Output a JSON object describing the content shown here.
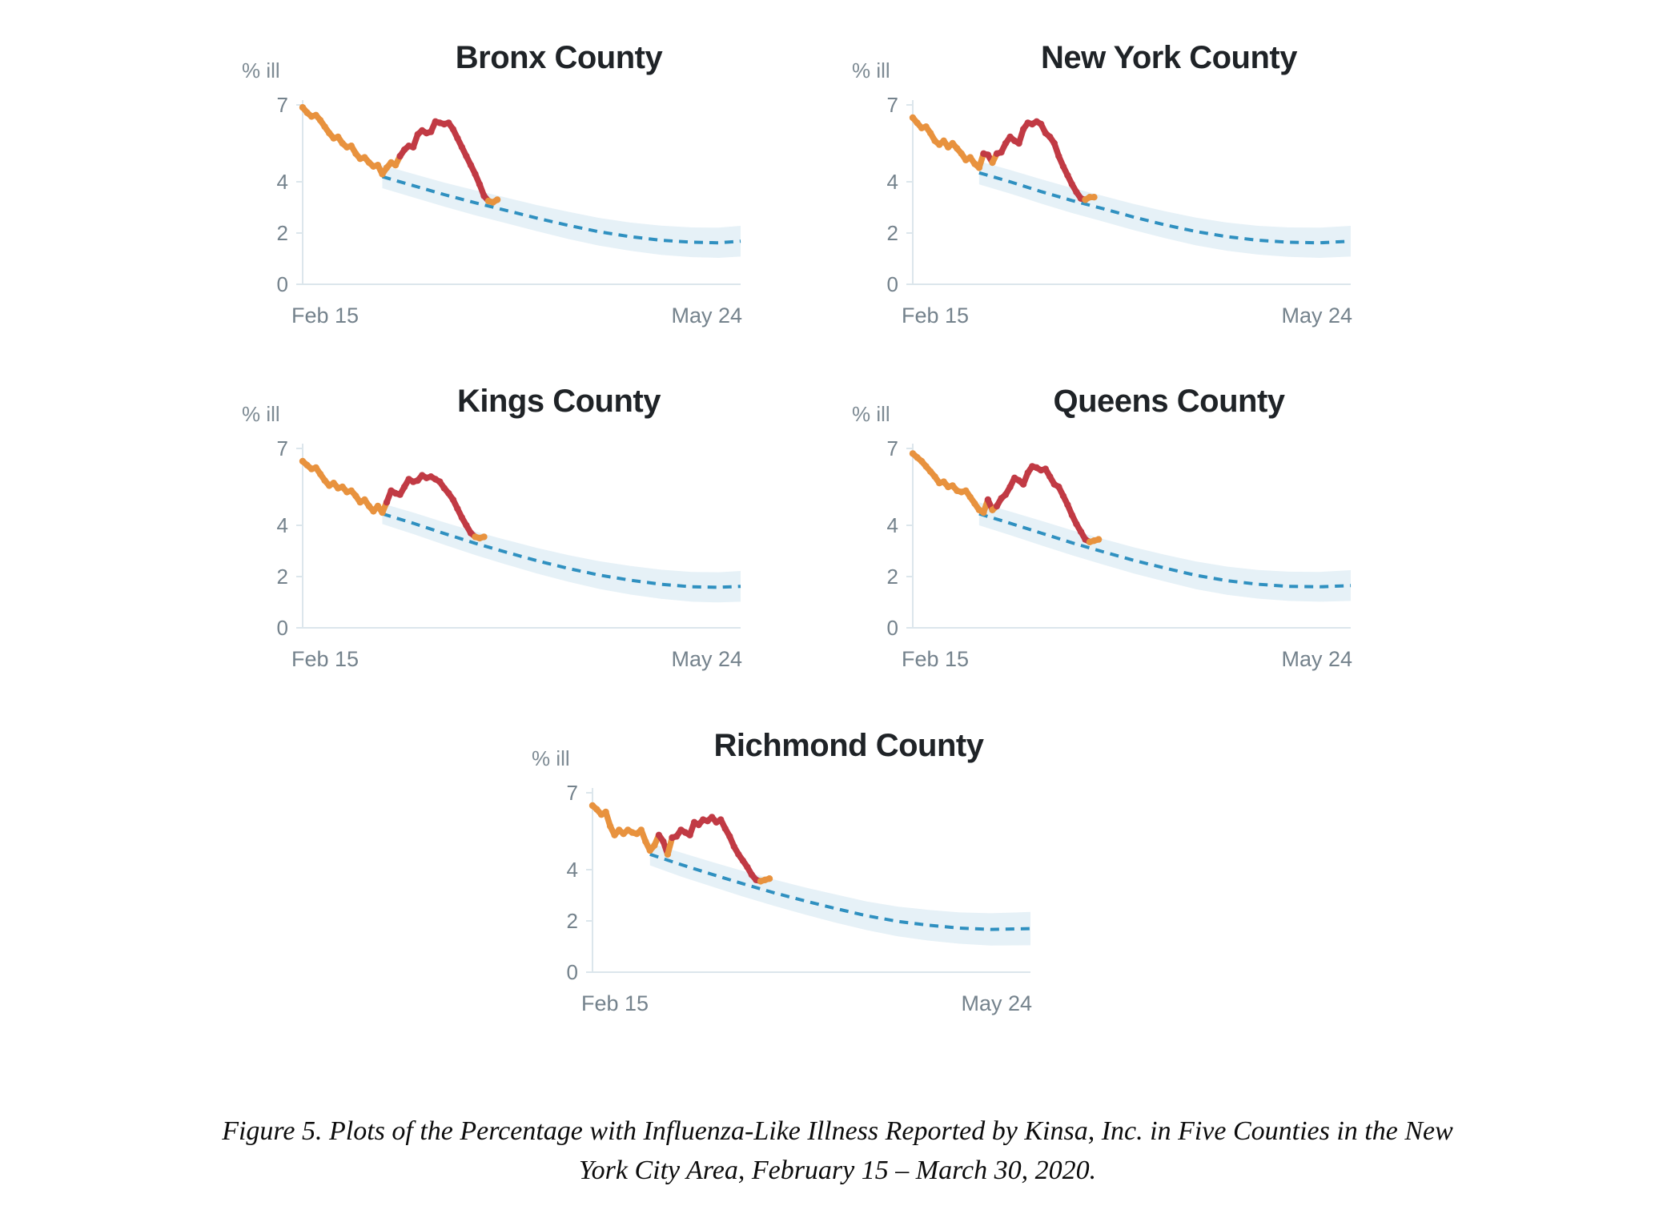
{
  "figure": {
    "caption_line1": "Figure 5. Plots of the Percentage with Influenza-Like Illness Reported by Kinsa, Inc. in Five Counties in the New",
    "caption_line2": "York City Area, February 15 – March 30, 2020."
  },
  "colors": {
    "observed": "#E8923E",
    "anomaly": "#C13A44",
    "forecast": "#2F90C0",
    "band": "#E6F1F7",
    "axis": "#DCE6EC",
    "tick_text": "#74828C",
    "title_text": "#1F2327"
  },
  "chart_data": [
    {
      "type": "line",
      "title": "Bronx County",
      "ylabel": "% ill",
      "y_ticks": [
        7,
        4,
        2,
        0
      ],
      "x_ticks": [
        "Feb 15",
        "May 24"
      ],
      "x_range_days": 99,
      "ylim": [
        0,
        7
      ],
      "observed": [
        6.9,
        6.7,
        6.55,
        6.6,
        6.4,
        6.15,
        5.9,
        5.7,
        5.75,
        5.5,
        5.35,
        5.4,
        5.1,
        4.9,
        4.95,
        4.75,
        4.6,
        4.65,
        4.3,
        4.55,
        4.75,
        4.65,
        5.0,
        5.25,
        5.4,
        5.35,
        5.85,
        6.0,
        5.9,
        5.95,
        6.35,
        6.3,
        6.25,
        6.3,
        6.05,
        5.7,
        5.35,
        5.0,
        4.65,
        4.3,
        3.9,
        3.45,
        3.25,
        3.2,
        3.3
      ],
      "anomaly_ranges": [
        [
          21.5,
          41.4
        ]
      ],
      "forecast": [
        [
          18,
          4.2
        ],
        [
          25,
          3.85
        ],
        [
          32,
          3.5
        ],
        [
          39,
          3.18
        ],
        [
          46,
          2.88
        ],
        [
          53,
          2.58
        ],
        [
          60,
          2.3
        ],
        [
          67,
          2.05
        ],
        [
          74,
          1.86
        ],
        [
          81,
          1.72
        ],
        [
          88,
          1.64
        ],
        [
          94,
          1.62
        ],
        [
          99,
          1.68
        ]
      ],
      "band": [
        [
          18,
          3.75,
          4.65
        ],
        [
          25,
          3.39,
          4.31
        ],
        [
          32,
          3.03,
          3.97
        ],
        [
          39,
          2.69,
          3.67
        ],
        [
          46,
          2.38,
          3.38
        ],
        [
          53,
          2.07,
          3.09
        ],
        [
          60,
          1.77,
          2.83
        ],
        [
          67,
          1.51,
          2.59
        ],
        [
          74,
          1.31,
          2.41
        ],
        [
          81,
          1.15,
          2.29
        ],
        [
          88,
          1.06,
          2.22
        ],
        [
          94,
          1.03,
          2.21
        ],
        [
          99,
          1.08,
          2.28
        ]
      ]
    },
    {
      "type": "line",
      "title": "New York County",
      "ylabel": "% ill",
      "y_ticks": [
        7,
        4,
        2,
        0
      ],
      "x_ticks": [
        "Feb 15",
        "May 24"
      ],
      "x_range_days": 99,
      "ylim": [
        0,
        7
      ],
      "observed": [
        6.5,
        6.3,
        6.1,
        6.15,
        5.9,
        5.6,
        5.45,
        5.6,
        5.35,
        5.5,
        5.3,
        5.1,
        4.85,
        4.95,
        4.7,
        4.55,
        5.1,
        5.05,
        4.75,
        5.1,
        5.15,
        5.5,
        5.75,
        5.6,
        5.5,
        6.05,
        6.3,
        6.25,
        6.35,
        6.25,
        5.9,
        5.75,
        5.5,
        5.0,
        4.6,
        4.25,
        3.9,
        3.6,
        3.35,
        3.3,
        3.4,
        3.4
      ],
      "anomaly_ranges": [
        [
          15.6,
          17.4
        ],
        [
          18.6,
          38.4
        ]
      ],
      "forecast": [
        [
          15,
          4.35
        ],
        [
          22,
          4.0
        ],
        [
          29,
          3.62
        ],
        [
          36,
          3.27
        ],
        [
          43,
          2.95
        ],
        [
          50,
          2.62
        ],
        [
          57,
          2.32
        ],
        [
          64,
          2.06
        ],
        [
          71,
          1.86
        ],
        [
          78,
          1.72
        ],
        [
          85,
          1.64
        ],
        [
          92,
          1.62
        ],
        [
          99,
          1.68
        ]
      ],
      "band": [
        [
          15,
          3.9,
          4.8
        ],
        [
          22,
          3.54,
          4.46
        ],
        [
          29,
          3.15,
          4.1
        ],
        [
          36,
          2.78,
          3.76
        ],
        [
          43,
          2.45,
          3.45
        ],
        [
          50,
          2.11,
          3.13
        ],
        [
          57,
          1.8,
          2.85
        ],
        [
          64,
          1.52,
          2.6
        ],
        [
          71,
          1.31,
          2.41
        ],
        [
          78,
          1.16,
          2.28
        ],
        [
          85,
          1.07,
          2.22
        ],
        [
          92,
          1.03,
          2.21
        ],
        [
          99,
          1.08,
          2.28
        ]
      ]
    },
    {
      "type": "line",
      "title": "Kings County",
      "ylabel": "% ill",
      "y_ticks": [
        7,
        4,
        2,
        0
      ],
      "x_ticks": [
        "Feb 15",
        "May 24"
      ],
      "x_range_days": 99,
      "ylim": [
        0,
        7
      ],
      "observed": [
        6.5,
        6.35,
        6.2,
        6.25,
        6.0,
        5.75,
        5.55,
        5.65,
        5.45,
        5.5,
        5.3,
        5.35,
        5.15,
        4.9,
        5.0,
        4.75,
        4.55,
        4.75,
        4.5,
        4.9,
        5.35,
        5.25,
        5.2,
        5.5,
        5.8,
        5.7,
        5.75,
        5.95,
        5.85,
        5.9,
        5.8,
        5.7,
        5.45,
        5.25,
        5.0,
        4.65,
        4.3,
        4.0,
        3.7,
        3.55,
        3.5,
        3.55
      ],
      "anomaly_ranges": [
        [
          18.6,
          38.4
        ]
      ],
      "forecast": [
        [
          18,
          4.45
        ],
        [
          25,
          4.08
        ],
        [
          32,
          3.68
        ],
        [
          39,
          3.3
        ],
        [
          46,
          2.95
        ],
        [
          53,
          2.62
        ],
        [
          60,
          2.32
        ],
        [
          67,
          2.06
        ],
        [
          74,
          1.86
        ],
        [
          81,
          1.7
        ],
        [
          88,
          1.6
        ],
        [
          94,
          1.58
        ],
        [
          99,
          1.62
        ]
      ],
      "band": [
        [
          18,
          4.05,
          4.85
        ],
        [
          25,
          3.66,
          4.5
        ],
        [
          32,
          3.24,
          4.12
        ],
        [
          39,
          2.84,
          3.76
        ],
        [
          46,
          2.47,
          3.43
        ],
        [
          53,
          2.12,
          3.12
        ],
        [
          60,
          1.8,
          2.84
        ],
        [
          67,
          1.52,
          2.6
        ],
        [
          74,
          1.3,
          2.42
        ],
        [
          81,
          1.13,
          2.27
        ],
        [
          88,
          1.02,
          2.18
        ],
        [
          94,
          0.99,
          2.17
        ],
        [
          99,
          1.02,
          2.22
        ]
      ]
    },
    {
      "type": "line",
      "title": "Queens County",
      "ylabel": "% ill",
      "y_ticks": [
        7,
        4,
        2,
        0
      ],
      "x_ticks": [
        "Feb 15",
        "May 24"
      ],
      "x_range_days": 99,
      "ylim": [
        0,
        7
      ],
      "observed": [
        6.8,
        6.65,
        6.5,
        6.3,
        6.1,
        5.9,
        5.65,
        5.7,
        5.5,
        5.55,
        5.35,
        5.3,
        5.35,
        5.1,
        4.85,
        4.6,
        4.5,
        5.0,
        4.6,
        4.75,
        5.05,
        5.2,
        5.5,
        5.85,
        5.75,
        5.6,
        6.05,
        6.3,
        6.25,
        6.15,
        6.2,
        5.9,
        5.6,
        5.5,
        5.15,
        4.8,
        4.4,
        4.05,
        3.75,
        3.45,
        3.35,
        3.4,
        3.45
      ],
      "anomaly_ranges": [
        [
          16.6,
          17.4
        ],
        [
          18.6,
          39.4
        ]
      ],
      "forecast": [
        [
          15,
          4.45
        ],
        [
          22,
          4.08
        ],
        [
          29,
          3.7
        ],
        [
          36,
          3.32
        ],
        [
          43,
          2.97
        ],
        [
          50,
          2.63
        ],
        [
          57,
          2.33
        ],
        [
          64,
          2.05
        ],
        [
          71,
          1.84
        ],
        [
          78,
          1.7
        ],
        [
          85,
          1.62
        ],
        [
          92,
          1.6
        ],
        [
          99,
          1.65
        ]
      ],
      "band": [
        [
          15,
          4.0,
          4.9
        ],
        [
          22,
          3.62,
          4.54
        ],
        [
          29,
          3.22,
          4.18
        ],
        [
          36,
          2.83,
          3.81
        ],
        [
          43,
          2.47,
          3.47
        ],
        [
          50,
          2.12,
          3.14
        ],
        [
          57,
          1.81,
          2.85
        ],
        [
          64,
          1.51,
          2.59
        ],
        [
          71,
          1.29,
          2.39
        ],
        [
          78,
          1.14,
          2.26
        ],
        [
          85,
          1.05,
          2.19
        ],
        [
          92,
          1.02,
          2.18
        ],
        [
          99,
          1.05,
          2.25
        ]
      ]
    },
    {
      "type": "line",
      "title": "Richmond County",
      "ylabel": "% ill",
      "y_ticks": [
        7,
        4,
        2,
        0
      ],
      "x_ticks": [
        "Feb 15",
        "May 24"
      ],
      "x_range_days": 99,
      "ylim": [
        0,
        7
      ],
      "observed": [
        6.5,
        6.35,
        6.15,
        6.25,
        5.7,
        5.35,
        5.55,
        5.4,
        5.55,
        5.45,
        5.4,
        5.55,
        5.1,
        4.75,
        4.95,
        5.35,
        5.1,
        4.6,
        5.25,
        5.3,
        5.55,
        5.45,
        5.35,
        5.85,
        5.75,
        5.95,
        5.9,
        6.05,
        5.85,
        5.95,
        5.6,
        5.3,
        4.9,
        4.6,
        4.35,
        4.1,
        3.8,
        3.6,
        3.55,
        3.6,
        3.65
      ],
      "anomaly_ranges": [
        [
          14.6,
          16.4
        ],
        [
          17.6,
          37.4
        ]
      ],
      "forecast": [
        [
          13,
          4.6
        ],
        [
          20,
          4.2
        ],
        [
          27,
          3.82
        ],
        [
          34,
          3.45
        ],
        [
          41,
          3.1
        ],
        [
          48,
          2.78
        ],
        [
          55,
          2.48
        ],
        [
          62,
          2.2
        ],
        [
          69,
          1.98
        ],
        [
          76,
          1.83
        ],
        [
          83,
          1.72
        ],
        [
          90,
          1.67
        ],
        [
          99,
          1.7
        ]
      ],
      "band": [
        [
          13,
          4.17,
          5.03
        ],
        [
          20,
          3.73,
          4.67
        ],
        [
          27,
          3.34,
          4.3
        ],
        [
          34,
          2.95,
          3.95
        ],
        [
          41,
          2.59,
          3.62
        ],
        [
          48,
          2.25,
          3.31
        ],
        [
          55,
          1.93,
          3.03
        ],
        [
          62,
          1.64,
          2.76
        ],
        [
          69,
          1.4,
          2.56
        ],
        [
          76,
          1.23,
          2.43
        ],
        [
          83,
          1.11,
          2.33
        ],
        [
          90,
          1.04,
          2.3
        ],
        [
          99,
          1.05,
          2.35
        ]
      ]
    }
  ]
}
